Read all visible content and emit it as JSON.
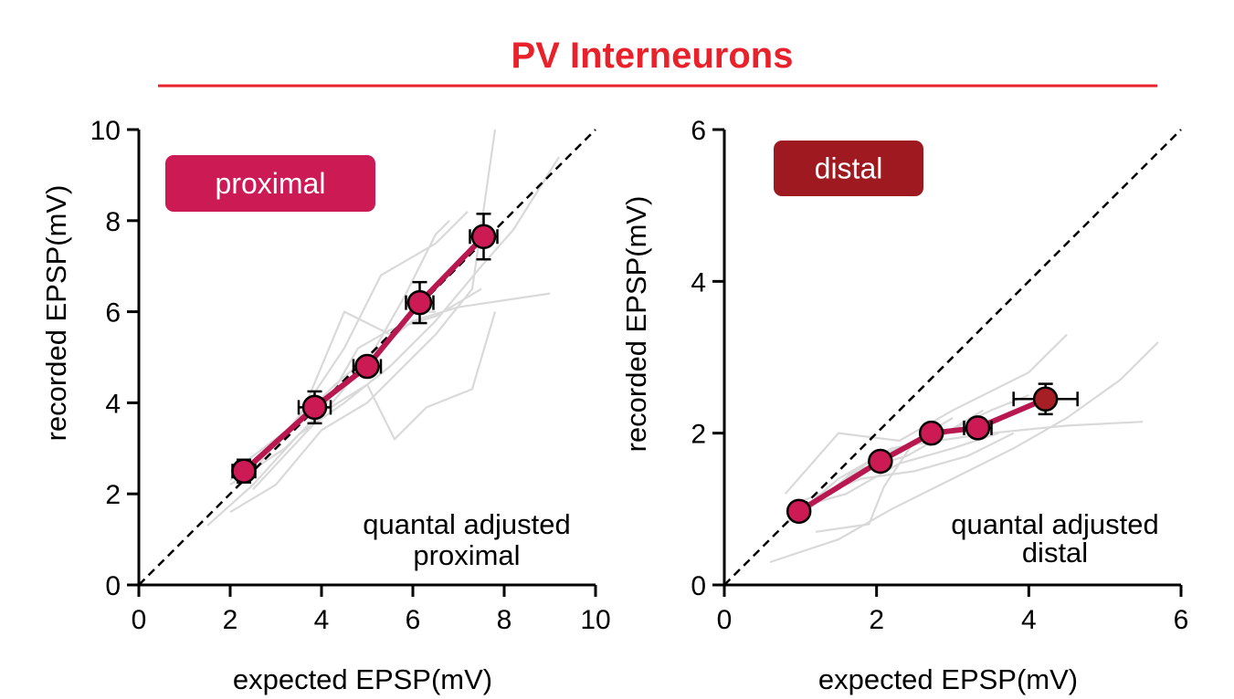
{
  "figure": {
    "title": "PV Interneurons",
    "title_color": "#e8212b",
    "title_rule_color": "#e8212b"
  },
  "chart_data": [
    {
      "type": "line",
      "xlabel": "expected EPSP(mV)",
      "ylabel": "recorded EPSP(mV)",
      "xlim": [
        0,
        10
      ],
      "ylim": [
        0,
        10
      ],
      "xticks": [
        "0",
        "2",
        "4",
        "6",
        "8",
        "10"
      ],
      "yticks": [
        "0",
        "2",
        "4",
        "6",
        "8",
        "10"
      ],
      "badge": {
        "text": "proximal",
        "color": "#cc1a55"
      },
      "annotation": [
        "quantal adjusted",
        "proximal"
      ],
      "unity_line": true,
      "mean_series": {
        "color": "#b8184f",
        "marker_color": "#cc1a55",
        "points": [
          {
            "x": 2.3,
            "y": 2.5,
            "xerr": 0.25,
            "yerr": 0.25
          },
          {
            "x": 3.85,
            "y": 3.9,
            "xerr": 0.35,
            "yerr": 0.35
          },
          {
            "x": 5.0,
            "y": 4.8,
            "xerr": 0.3,
            "yerr": 0.2
          },
          {
            "x": 6.15,
            "y": 6.2,
            "xerr": 0.3,
            "yerr": 0.45
          },
          {
            "x": 7.55,
            "y": 7.65,
            "xerr": 0.3,
            "yerr": 0.5
          }
        ]
      },
      "individual_color": "#d9d9d9",
      "individual_series": [
        [
          [
            1.5,
            1.3
          ],
          [
            2.5,
            2.2
          ],
          [
            3.5,
            3.3
          ],
          [
            4.5,
            4.0
          ],
          [
            5.5,
            4.8
          ],
          [
            6.5,
            5.8
          ],
          [
            7.5,
            7.0
          ],
          [
            8.2,
            7.8
          ],
          [
            9.2,
            9.4
          ]
        ],
        [
          [
            2.0,
            1.6
          ],
          [
            3.0,
            2.2
          ],
          [
            4.0,
            3.4
          ],
          [
            5.0,
            4.0
          ],
          [
            6.5,
            5.5
          ],
          [
            7.3,
            6.5
          ],
          [
            7.8,
            10.0
          ]
        ],
        [
          [
            2.0,
            2.2
          ],
          [
            3.2,
            3.0
          ],
          [
            4.0,
            3.8
          ],
          [
            4.8,
            5.2
          ],
          [
            5.5,
            5.6
          ],
          [
            6.5,
            5.9
          ],
          [
            7.5,
            6.5
          ]
        ],
        [
          [
            2.3,
            2.4
          ],
          [
            3.5,
            3.6
          ],
          [
            4.2,
            3.9
          ],
          [
            5.0,
            4.4
          ],
          [
            5.6,
            3.2
          ],
          [
            6.3,
            3.9
          ],
          [
            7.3,
            4.3
          ],
          [
            7.8,
            6.0
          ]
        ],
        [
          [
            2.5,
            2.5
          ],
          [
            3.5,
            3.7
          ],
          [
            4.5,
            5.2
          ],
          [
            5.3,
            6.8
          ],
          [
            6.5,
            7.5
          ],
          [
            7.2,
            8.2
          ]
        ],
        [
          [
            2.0,
            2.3
          ],
          [
            3.3,
            3.4
          ],
          [
            4.3,
            4.4
          ],
          [
            5.0,
            5.0
          ],
          [
            6.0,
            5.8
          ],
          [
            7.0,
            6.1
          ],
          [
            9.0,
            6.4
          ]
        ],
        [
          [
            2.2,
            2.6
          ],
          [
            3.5,
            3.6
          ],
          [
            4.5,
            6.0
          ],
          [
            5.5,
            5.5
          ],
          [
            6.0,
            6.0
          ],
          [
            6.5,
            6.0
          ]
        ],
        [
          [
            2.5,
            2.1
          ],
          [
            3.8,
            3.5
          ],
          [
            5.0,
            4.9
          ],
          [
            5.8,
            6.3
          ],
          [
            6.5,
            7.7
          ],
          [
            6.8,
            8.0
          ]
        ]
      ]
    },
    {
      "type": "line",
      "xlabel": "expected EPSP(mV)",
      "ylabel": "recorded EPSP(mV)",
      "xlim": [
        0,
        6
      ],
      "ylim": [
        0,
        6
      ],
      "xticks": [
        "0",
        "2",
        "4",
        "6"
      ],
      "yticks": [
        "0",
        "2",
        "4",
        "6"
      ],
      "badge": {
        "text": "distal",
        "color": "#9e1a20"
      },
      "annotation": [
        "quantal adjusted",
        "distal"
      ],
      "unity_line": true,
      "mean_series": {
        "color": "#b8184f",
        "marker_color": "#cc1a55",
        "last_marker_color": "#a51f24",
        "points": [
          {
            "x": 0.98,
            "y": 0.97,
            "xerr": 0.05,
            "yerr": 0.05
          },
          {
            "x": 2.05,
            "y": 1.63,
            "xerr": 0.05,
            "yerr": 0.08
          },
          {
            "x": 2.72,
            "y": 2.0,
            "xerr": 0.08,
            "yerr": 0.08
          },
          {
            "x": 3.33,
            "y": 2.07,
            "xerr": 0.18,
            "yerr": 0.12
          },
          {
            "x": 4.22,
            "y": 2.45,
            "xerr": 0.42,
            "yerr": 0.2
          }
        ]
      },
      "individual_color": "#d9d9d9",
      "individual_series": [
        [
          [
            0.6,
            0.3
          ],
          [
            1.5,
            0.6
          ],
          [
            2.2,
            1.0
          ],
          [
            3.0,
            1.4
          ],
          [
            3.8,
            1.8
          ],
          [
            4.5,
            2.2
          ],
          [
            5.2,
            2.7
          ],
          [
            5.7,
            3.2
          ]
        ],
        [
          [
            0.8,
            0.8
          ],
          [
            1.5,
            1.4
          ],
          [
            2.2,
            1.8
          ],
          [
            2.8,
            1.9
          ],
          [
            3.5,
            2.0
          ],
          [
            4.5,
            2.1
          ],
          [
            5.5,
            2.15
          ]
        ],
        [
          [
            0.8,
            1.2
          ],
          [
            1.5,
            2.0
          ],
          [
            2.3,
            1.9
          ],
          [
            3.0,
            2.3
          ],
          [
            4.0,
            2.8
          ],
          [
            4.5,
            3.3
          ]
        ],
        [
          [
            1.0,
            0.9
          ],
          [
            1.7,
            1.5
          ],
          [
            2.4,
            1.7
          ],
          [
            3.1,
            2.1
          ],
          [
            3.5,
            2.3
          ],
          [
            4.0,
            2.5
          ]
        ],
        [
          [
            1.2,
            0.7
          ],
          [
            1.9,
            0.8
          ],
          [
            2.1,
            1.3
          ],
          [
            2.5,
            1.9
          ],
          [
            3.0,
            2.2
          ]
        ],
        [
          [
            1.0,
            1.1
          ],
          [
            1.8,
            1.4
          ],
          [
            2.5,
            1.5
          ],
          [
            3.2,
            1.7
          ],
          [
            3.8,
            2.0
          ]
        ],
        [
          [
            0.9,
            1.0
          ],
          [
            1.6,
            1.2
          ],
          [
            2.3,
            1.6
          ],
          [
            3.0,
            1.8
          ],
          [
            3.6,
            2.0
          ]
        ],
        [
          [
            1.1,
            1.0
          ],
          [
            2.0,
            1.7
          ],
          [
            2.9,
            2.0
          ],
          [
            3.4,
            2.3
          ]
        ]
      ]
    }
  ]
}
